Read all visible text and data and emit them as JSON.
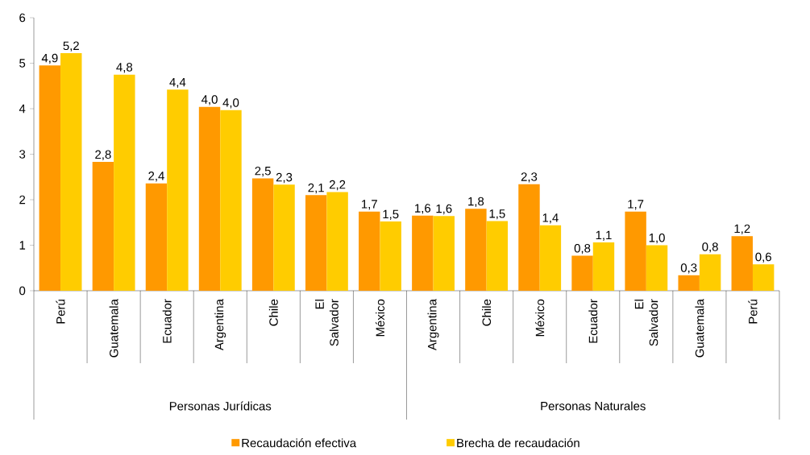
{
  "chart_data": {
    "type": "bar",
    "categories": [
      "Perú",
      "Guatemala",
      "Ecuador",
      "Argentina",
      "Chile",
      "El Salvador",
      "México",
      "Argentina",
      "Chile",
      "México",
      "Ecuador",
      "El Salvador",
      "Guatemala",
      "Perú"
    ],
    "series": [
      {
        "name": "Recaudación efectiva",
        "color": "#ff9900",
        "values": [
          4.95,
          2.83,
          2.36,
          4.04,
          2.47,
          2.1,
          1.74,
          1.65,
          1.8,
          2.34,
          0.77,
          1.74,
          0.34,
          1.2
        ],
        "value_labels": [
          "4,9",
          "2,8",
          "2,4",
          "4,0",
          "2,5",
          "2,1",
          "1,7",
          "1,6",
          "1,8",
          "2,3",
          "0,8",
          "1,7",
          "0,3",
          "1,2"
        ]
      },
      {
        "name": "Brecha de recaudación",
        "color": "#ffcc00",
        "values": [
          5.22,
          4.75,
          4.42,
          3.97,
          2.33,
          2.17,
          1.52,
          1.64,
          1.53,
          1.44,
          1.06,
          1.0,
          0.8,
          0.58
        ],
        "value_labels": [
          "5,2",
          "4,8",
          "4,4",
          "4,0",
          "2,3",
          "2,2",
          "1,5",
          "1,6",
          "1,5",
          "1,4",
          "1,1",
          "1,0",
          "0,8",
          "0,6"
        ]
      }
    ],
    "annotations": [
      "Personas Jurídicas",
      "Personas Naturales"
    ],
    "ylim": [
      0,
      6
    ],
    "yticks": [
      0,
      1,
      2,
      3,
      4,
      5,
      6
    ],
    "legend": "bottom"
  }
}
